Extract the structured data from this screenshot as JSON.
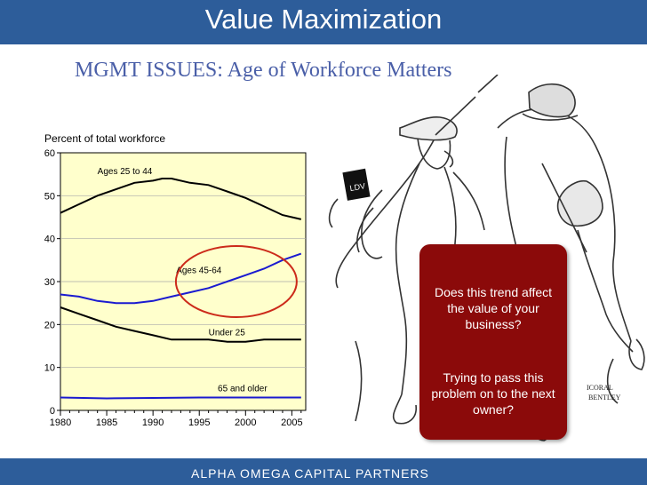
{
  "slide": {
    "title": "Value Maximization",
    "subtitle": "MGMT ISSUES: Age of Workforce Matters",
    "footer": "ALPHA  OMEGA  CAPITAL  PARTNERS"
  },
  "callout": {
    "question1": "Does this trend affect the value of your business?",
    "question2": "Trying to pass this problem on to the next owner?"
  },
  "cartoon": {
    "armband": "LDV",
    "signature1": "ICORAL",
    "signature2": "BENTLEY"
  },
  "colors": {
    "header": "#2d5d9a",
    "plot_bg": "#ffffcc",
    "callout": "#8b0a0a",
    "highlight_circle": "#cc2a1a",
    "blue_series": "#1a1ad0"
  },
  "chart_data": {
    "type": "line",
    "title": "Percent of total workforce",
    "ylim": [
      0,
      60
    ],
    "xlim": [
      1980,
      2006.5
    ],
    "x_ticks": [
      1980,
      1985,
      1990,
      1995,
      2000,
      2005
    ],
    "y_ticks": [
      0,
      10,
      20,
      30,
      40,
      50,
      60
    ],
    "grid": true,
    "series": [
      {
        "name": "Ages 25 to 44",
        "color": "#000000",
        "x": [
          1980,
          1982,
          1984,
          1986,
          1988,
          1990,
          1991,
          1992,
          1994,
          1996,
          1998,
          2000,
          2002,
          2004,
          2006
        ],
        "y": [
          46,
          48,
          50,
          51.5,
          53,
          53.5,
          54,
          54,
          53,
          52.5,
          51,
          49.5,
          47.5,
          45.5,
          44.5
        ]
      },
      {
        "name": "Ages 45-64",
        "color": "#1a1ad0",
        "x": [
          1980,
          1982,
          1984,
          1986,
          1988,
          1990,
          1992,
          1994,
          1996,
          1998,
          2000,
          2002,
          2004,
          2006
        ],
        "y": [
          27,
          26.5,
          25.5,
          25,
          25,
          25.5,
          26.5,
          27.5,
          28.5,
          30,
          31.5,
          33,
          35,
          36.5
        ]
      },
      {
        "name": "Under 25",
        "color": "#000000",
        "x": [
          1980,
          1982,
          1984,
          1986,
          1988,
          1990,
          1992,
          1994,
          1996,
          1998,
          2000,
          2002,
          2004,
          2006
        ],
        "y": [
          24,
          22.5,
          21,
          19.5,
          18.5,
          17.5,
          16.5,
          16.5,
          16.5,
          16,
          16,
          16.5,
          16.5,
          16.5
        ]
      },
      {
        "name": "65 and older",
        "color": "#1a1ad0",
        "x": [
          1980,
          1985,
          1990,
          1995,
          2000,
          2005,
          2006
        ],
        "y": [
          3,
          2.8,
          2.9,
          3,
          3,
          3,
          3
        ]
      }
    ]
  }
}
